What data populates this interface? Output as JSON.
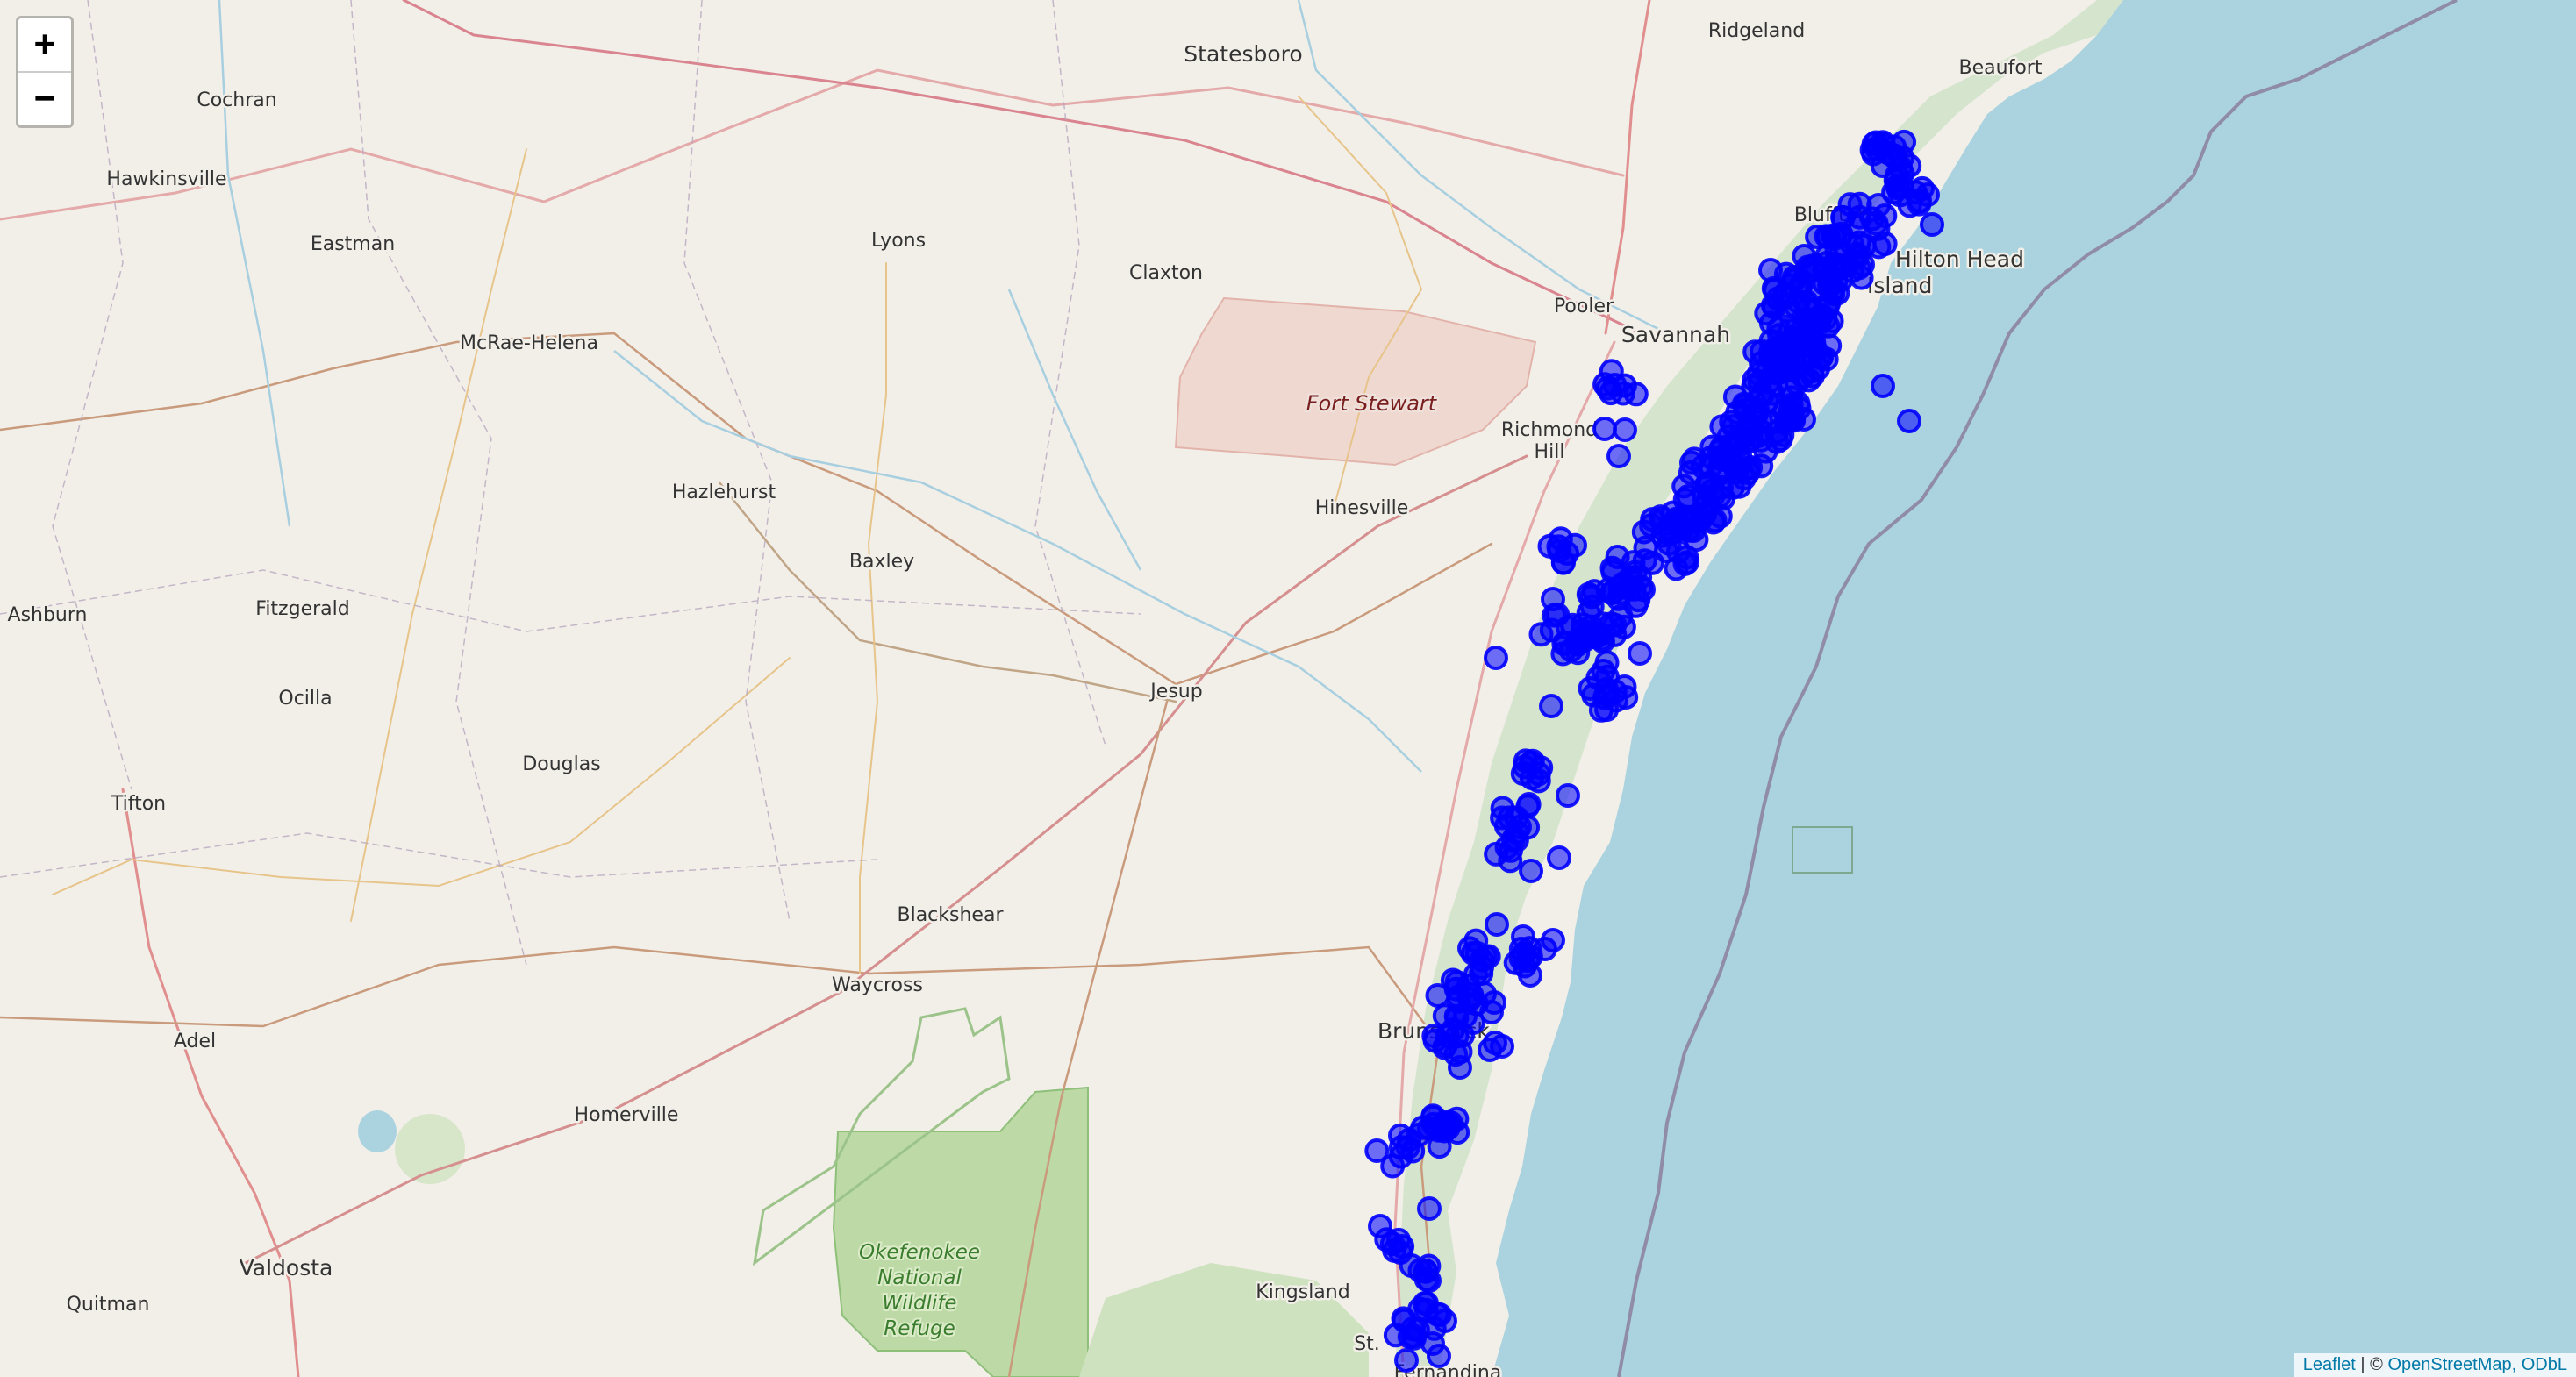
{
  "map": {
    "zoom_in_label": "+",
    "zoom_out_label": "−",
    "marker_color": "#0000ff",
    "water_color": "#aad3df",
    "land_color": "#f2efe9",
    "places": [
      {
        "name": "Statesboro",
        "large": true
      },
      {
        "name": "Ridgeland",
        "large": false
      },
      {
        "name": "Beaufort",
        "large": false
      },
      {
        "name": "Cochran",
        "large": false
      },
      {
        "name": "Hawkinsville",
        "large": false
      },
      {
        "name": "Eastman",
        "large": false
      },
      {
        "name": "Lyons",
        "large": false
      },
      {
        "name": "Claxton",
        "large": false
      },
      {
        "name": "Bluffton",
        "large": false
      },
      {
        "name": "Pooler",
        "large": false
      },
      {
        "name": "Savannah",
        "large": true
      },
      {
        "name": "McRae-Helena",
        "large": false
      },
      {
        "name": "Richmond",
        "large": false
      },
      {
        "name": "Hill",
        "large": false
      },
      {
        "name": "Hazlehurst",
        "large": false
      },
      {
        "name": "Hinesville",
        "large": false
      },
      {
        "name": "Baxley",
        "large": false
      },
      {
        "name": "Ashburn",
        "large": false
      },
      {
        "name": "Fitzgerald",
        "large": false
      },
      {
        "name": "Jesup",
        "large": false
      },
      {
        "name": "Ocilla",
        "large": false
      },
      {
        "name": "Douglas",
        "large": false
      },
      {
        "name": "Tifton",
        "large": false
      },
      {
        "name": "Blackshear",
        "large": false
      },
      {
        "name": "Waycross",
        "large": false
      },
      {
        "name": "Brunswick",
        "large": true
      },
      {
        "name": "Adel",
        "large": false
      },
      {
        "name": "Homerville",
        "large": false
      },
      {
        "name": "Valdosta",
        "large": true
      },
      {
        "name": "Quitman",
        "large": false
      },
      {
        "name": "Kingsland",
        "large": false
      },
      {
        "name": "St.",
        "large": false
      },
      {
        "name": "Fernandina",
        "large": false
      },
      {
        "name": "Hilton Head",
        "large": true
      },
      {
        "name": "Island",
        "large": true
      }
    ],
    "area_label": "Fort Stewart",
    "park_label_lines": [
      "Okefenokee",
      "National",
      "Wildlife",
      "Refuge"
    ],
    "attribution": {
      "leaflet": "Leaflet",
      "separator": " | © ",
      "osm": "OpenStreetMap, ODbL"
    }
  }
}
